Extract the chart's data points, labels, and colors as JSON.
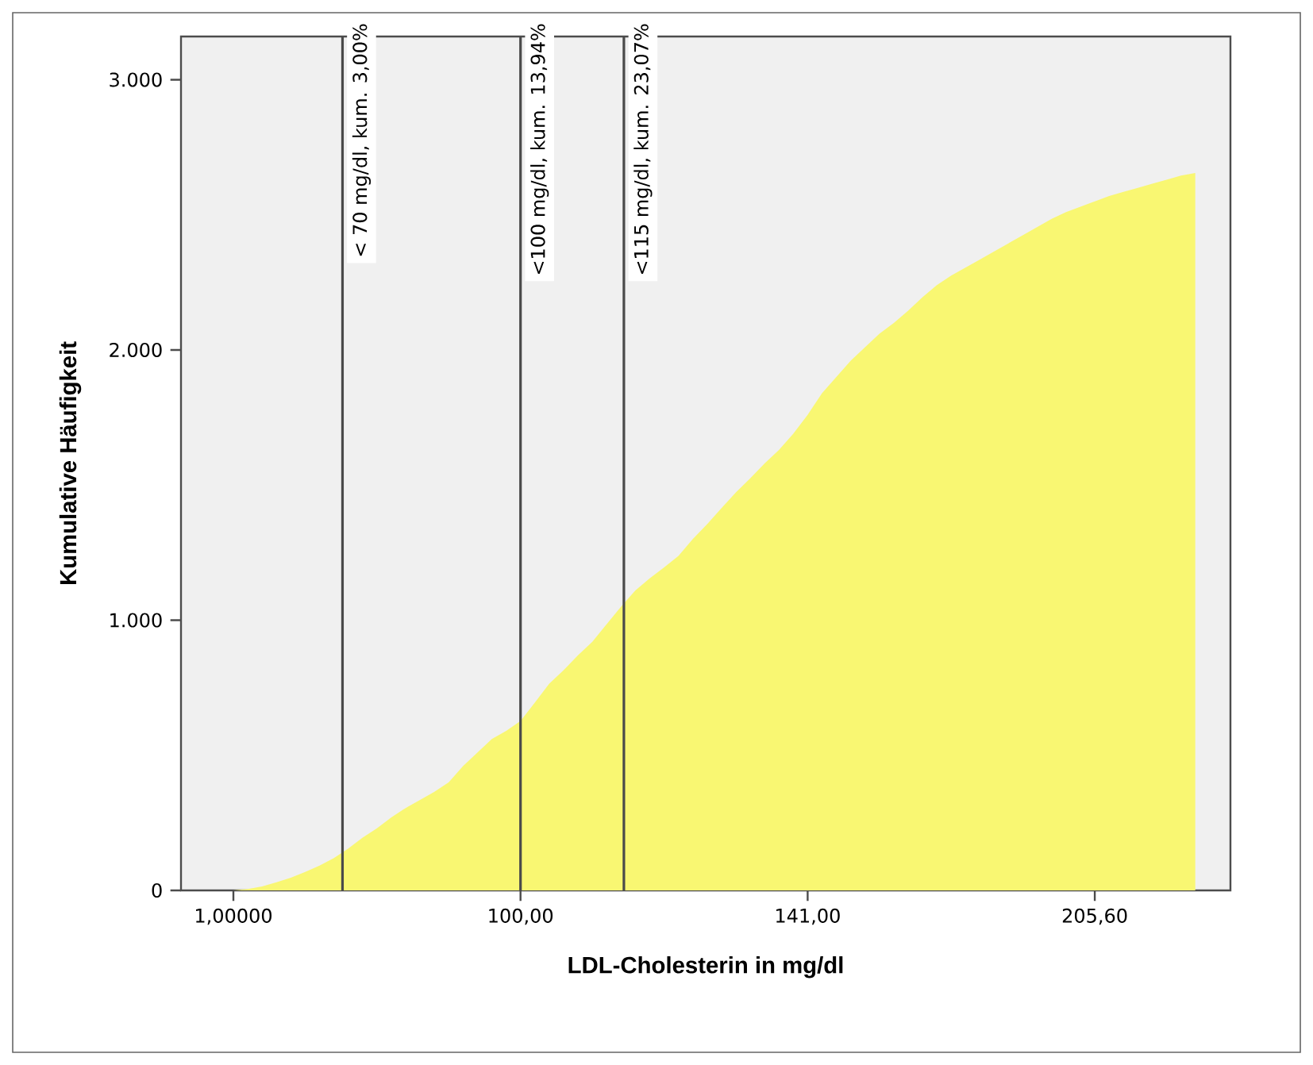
{
  "chart_data": {
    "type": "area",
    "xlabel": "LDL-Cholesterin in mg/dl",
    "ylabel": "Kumulative Häufigkeit",
    "categories": [
      "1,00000",
      null,
      null,
      null,
      null,
      null,
      null,
      null,
      null,
      null,
      null,
      null,
      null,
      null,
      null,
      null,
      null,
      null,
      null,
      null,
      "100,00",
      null,
      null,
      null,
      null,
      null,
      null,
      null,
      null,
      null,
      null,
      null,
      null,
      null,
      null,
      null,
      null,
      null,
      null,
      null,
      "141,00",
      null,
      null,
      null,
      null,
      null,
      null,
      null,
      null,
      null,
      null,
      null,
      null,
      null,
      null,
      null,
      null,
      null,
      null,
      null,
      "205,60",
      null,
      null,
      null,
      null,
      null,
      null,
      null
    ],
    "values": [
      0,
      5,
      15,
      30,
      47,
      68,
      92,
      120,
      155,
      195,
      230,
      270,
      305,
      335,
      365,
      400,
      460,
      510,
      560,
      590,
      627,
      695,
      765,
      815,
      870,
      920,
      985,
      1050,
      1110,
      1155,
      1195,
      1238,
      1300,
      1355,
      1415,
      1473,
      1525,
      1580,
      1630,
      1690,
      1760,
      1840,
      1900,
      1960,
      2010,
      2060,
      2100,
      2145,
      2195,
      2240,
      2275,
      2305,
      2335,
      2365,
      2395,
      2425,
      2455,
      2485,
      2510,
      2530,
      2550,
      2570,
      2585,
      2600,
      2615,
      2630,
      2645,
      2655
    ],
    "color": "#f9f772",
    "ylim": [
      0,
      3160
    ],
    "yticks": [
      0,
      {
        "value": 1000,
        "label": "1.000"
      },
      {
        "value": 2000,
        "label": "2.000"
      },
      {
        "value": 3000,
        "label": "3.000"
      }
    ],
    "annotations": [
      "< 70 mg/dl, kum. 3,00%",
      "<100 mg/dl, kum. 13,94%",
      "<115 mg/dl, kum. 23,07%"
    ]
  }
}
